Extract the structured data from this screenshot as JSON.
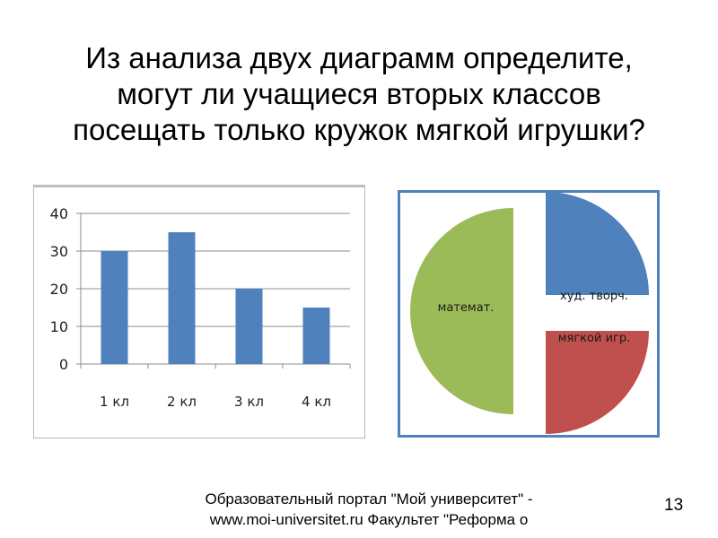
{
  "slide": {
    "title_lines": [
      "Из анализа двух диаграмм определите,",
      "могут ли учащиеся вторых классов",
      "посещать только кружок мягкой игрушки?"
    ],
    "footer_lines": [
      "Образовательный портал \"Мой университет\" -",
      "www.moi-universitet.ru Факультет \"Реформа о"
    ],
    "page_number": "13"
  },
  "chart_data": [
    {
      "type": "bar",
      "categories": [
        "1 кл",
        "2 кл",
        "3 кл",
        "4 кл"
      ],
      "values": [
        30,
        35,
        20,
        15
      ],
      "ylim": [
        0,
        40
      ],
      "yticks": [
        "0",
        "10",
        "20",
        "30",
        "40"
      ],
      "grid": true,
      "legend": "none",
      "color": "#4f81bd"
    },
    {
      "type": "pie",
      "style": "exploded",
      "slices": [
        {
          "label": "худ. творч.",
          "value": 25,
          "color": "#4f81bd"
        },
        {
          "label": "мягкой игр.",
          "value": 25,
          "color": "#c0504d"
        },
        {
          "label": "математ.",
          "value": 50,
          "color": "#9bbb59"
        }
      ]
    }
  ]
}
